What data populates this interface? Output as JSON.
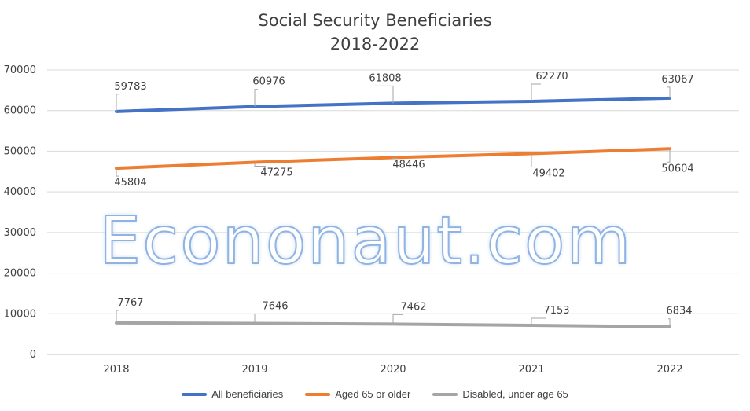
{
  "chart_data": {
    "type": "line",
    "title": "Social Security Beneficiaries",
    "subtitle": "2018-2022",
    "x": [
      "2018",
      "2019",
      "2020",
      "2021",
      "2022"
    ],
    "ylim": [
      0,
      70000
    ],
    "yticks": [
      0,
      10000,
      20000,
      30000,
      40000,
      50000,
      60000,
      70000
    ],
    "grid": true,
    "legend_position": "bottom",
    "series": [
      {
        "name": "All beneficiaries",
        "color": "#4472c4",
        "values": [
          59783,
          60976,
          61808,
          62270,
          63067
        ]
      },
      {
        "name": "Aged 65 or older",
        "color": "#ed7d31",
        "values": [
          45804,
          47275,
          48446,
          49402,
          50604
        ]
      },
      {
        "name": "Disabled, under age 65",
        "color": "#a5a5a5",
        "values": [
          7767,
          7646,
          7462,
          7153,
          6834
        ]
      }
    ],
    "watermark": "Econonaut.com"
  }
}
